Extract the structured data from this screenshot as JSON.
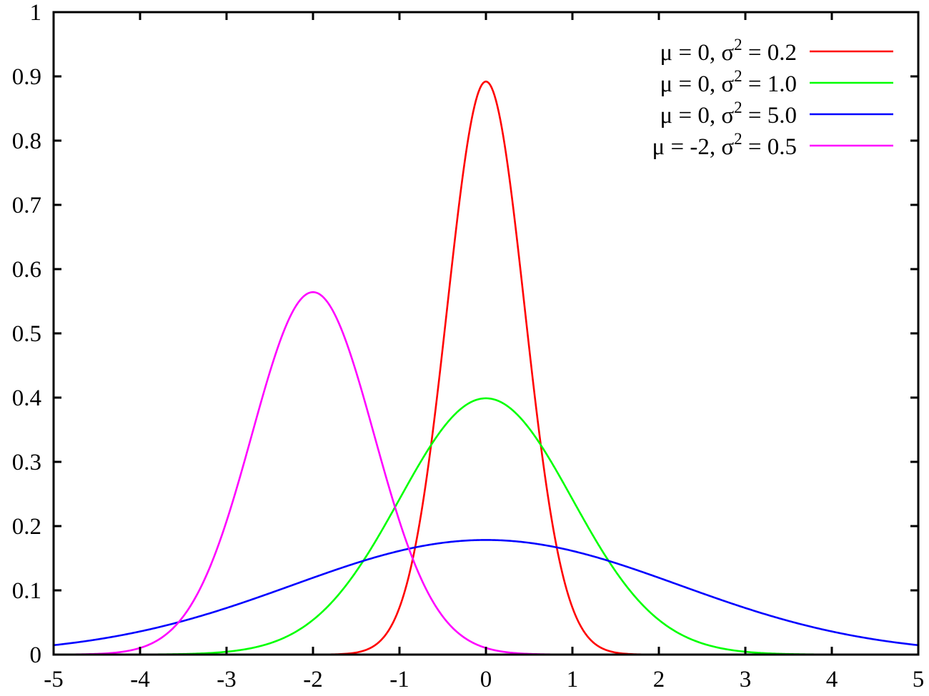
{
  "chart_data": {
    "type": "line",
    "title": "",
    "xlabel": "",
    "ylabel": "",
    "xlim": [
      -5,
      5
    ],
    "ylim": [
      0,
      1
    ],
    "x_ticks": [
      "-5",
      "-4",
      "-3",
      "-2",
      "-1",
      "0",
      "1",
      "2",
      "3",
      "4",
      "5"
    ],
    "y_ticks": [
      "0",
      "0.1",
      "0.2",
      "0.3",
      "0.4",
      "0.5",
      "0.6",
      "0.7",
      "0.8",
      "0.9",
      "1"
    ],
    "grid": false,
    "legend_position": "top-right",
    "series": [
      {
        "name": "μ =  0, σ2 = 0.2",
        "legend_parts": {
          "pre": "μ =  0, σ",
          "sup": "2",
          "post": " = 0.2"
        },
        "mu": 0,
        "variance": 0.2,
        "color": "#ff0000",
        "x": [
          -5,
          -4,
          -3,
          -2,
          -1.5,
          -1,
          -0.5,
          0,
          0.5,
          1,
          1.5,
          2,
          3,
          4,
          5
        ],
        "values": [
          0,
          0,
          0,
          0,
          0.003,
          0.0729,
          0.476,
          0.892,
          0.476,
          0.0729,
          0.003,
          0,
          0,
          0,
          0
        ]
      },
      {
        "name": "μ =  0, σ2 = 1.0",
        "legend_parts": {
          "pre": "μ =  0, σ",
          "sup": "2",
          "post": " = 1.0"
        },
        "mu": 0,
        "variance": 1.0,
        "color": "#00ff00",
        "x": [
          -5,
          -4,
          -3,
          -2,
          -1,
          0,
          1,
          2,
          3,
          4,
          5
        ],
        "values": [
          0,
          0.0001,
          0.0044,
          0.054,
          0.242,
          0.399,
          0.242,
          0.054,
          0.0044,
          0.0001,
          0
        ]
      },
      {
        "name": "μ =  0, σ2 = 5.0",
        "legend_parts": {
          "pre": "μ =  0, σ",
          "sup": "2",
          "post": " = 5.0"
        },
        "mu": 0,
        "variance": 5.0,
        "color": "#0000ff",
        "x": [
          -5,
          -4,
          -3,
          -2,
          -1,
          0,
          1,
          2,
          3,
          4,
          5
        ],
        "values": [
          0.0146,
          0.0361,
          0.0734,
          0.1196,
          0.1614,
          0.1784,
          0.1614,
          0.1196,
          0.0734,
          0.0361,
          0.0146
        ]
      },
      {
        "name": "μ = -2, σ2 = 0.5",
        "legend_parts": {
          "pre": "μ = -2, σ",
          "sup": "2",
          "post": " = 0.5"
        },
        "mu": -2,
        "variance": 0.5,
        "color": "#ff00ff",
        "x": [
          -5,
          -4,
          -3,
          -2,
          -1,
          0,
          1,
          2,
          3,
          4,
          5
        ],
        "values": [
          0,
          0.0103,
          0.2076,
          0.5642,
          0.2076,
          0.0103,
          0,
          0,
          0,
          0,
          0
        ]
      }
    ]
  }
}
